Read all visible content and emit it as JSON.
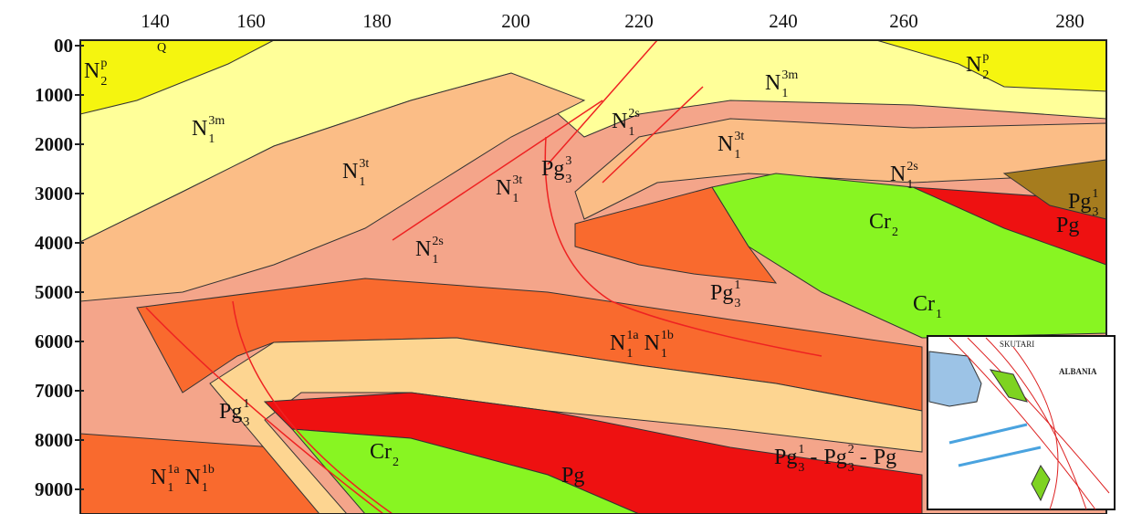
{
  "x_axis_labels": [
    "140",
    "160",
    "180",
    "200",
    "220",
    "240",
    "260",
    "280"
  ],
  "y_axis_labels": [
    "00",
    "1000",
    "2000",
    "3000",
    "4000",
    "5000",
    "6000",
    "7000",
    "8000",
    "9000"
  ],
  "formation_labels": [
    {
      "parts": [
        {
          "base": "N",
          "sub": "2",
          "sup": "p"
        }
      ]
    },
    {
      "parts": [
        {
          "base": "N",
          "sub": "1",
          "sup": "3m"
        }
      ]
    },
    {
      "parts": [
        {
          "base": "N",
          "sub": "1",
          "sup": "3t"
        }
      ]
    },
    {
      "parts": [
        {
          "base": "N",
          "sub": "1",
          "sup": "2s"
        }
      ]
    },
    {
      "parts": [
        {
          "base": "N",
          "sub": "1",
          "sup": "3t"
        }
      ]
    },
    {
      "parts": [
        {
          "base": "Pg",
          "sub": "3",
          "sup": "3"
        }
      ]
    },
    {
      "parts": [
        {
          "base": "N",
          "sub": "1",
          "sup": "2s"
        }
      ]
    },
    {
      "parts": [
        {
          "base": "N",
          "sub": "1",
          "sup": "3m"
        }
      ]
    },
    {
      "parts": [
        {
          "base": "N",
          "sub": "2",
          "sup": "p"
        }
      ]
    },
    {
      "parts": [
        {
          "base": "N",
          "sub": "1",
          "sup": "3t"
        }
      ]
    },
    {
      "parts": [
        {
          "base": "N",
          "sub": "1",
          "sup": "2s"
        }
      ]
    },
    {
      "parts": [
        {
          "base": "Cr",
          "sub": "2"
        }
      ]
    },
    {
      "parts": [
        {
          "base": "Pg",
          "sub": "3",
          "sup": "1"
        }
      ]
    },
    {
      "parts": [
        {
          "base": "Pg"
        }
      ]
    },
    {
      "parts": [
        {
          "base": "Pg",
          "sub": "3",
          "sup": "1"
        }
      ]
    },
    {
      "parts": [
        {
          "base": "Cr",
          "sub": "1"
        }
      ]
    },
    {
      "parts": [
        {
          "base": "N",
          "sub": "1",
          "sup": "1a"
        },
        {
          "base": "N",
          "sub": "1",
          "sup": "1b"
        }
      ]
    },
    {
      "parts": [
        {
          "base": "Pg",
          "sub": "3",
          "sup": "1"
        }
      ]
    },
    {
      "parts": [
        {
          "base": "Cr",
          "sub": "2"
        }
      ]
    },
    {
      "parts": [
        {
          "base": "Pg"
        }
      ]
    },
    {
      "parts": [
        {
          "base": "Pg",
          "sub": "3",
          "sup": "1"
        },
        {
          "base": "-"
        },
        {
          "base": "Pg",
          "sub": "3",
          "sup": "2"
        },
        {
          "base": "-"
        },
        {
          "base": "Pg"
        }
      ]
    },
    {
      "parts": [
        {
          "base": "N",
          "sub": "1",
          "sup": "1a"
        },
        {
          "base": "N",
          "sub": "1",
          "sup": "1b"
        }
      ]
    },
    {
      "parts": [
        {
          "base": "Q"
        }
      ]
    }
  ],
  "inset_map": {
    "labels": [
      "SKUTARI",
      "ALBANIA"
    ]
  }
}
